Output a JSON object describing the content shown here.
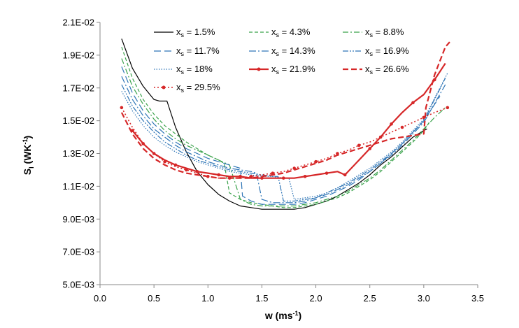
{
  "chart_data": {
    "type": "line",
    "title": "",
    "xlabel": "w (ms",
    "xlabel_sup": "-1",
    "xlabel_tail": ")",
    "ylabel": "S",
    "ylabel_sub": "I",
    "ylabel_unit": " (WK",
    "ylabel_unit_sup": "-1",
    "ylabel_tail": ")",
    "xlim": [
      0,
      3.5
    ],
    "ylim": [
      0.005,
      0.021
    ],
    "x_ticks": [
      0,
      0.5,
      1.0,
      1.5,
      2.0,
      2.5,
      3.0,
      3.5
    ],
    "x_tick_labels": [
      "0.0",
      "0.5",
      "1.0",
      "1.5",
      "2.0",
      "2.5",
      "3.0",
      "3.5"
    ],
    "y_ticks": [
      0.005,
      0.007,
      0.009,
      0.011,
      0.013,
      0.015,
      0.017,
      0.019,
      0.021
    ],
    "y_tick_labels": [
      "5.0E-03",
      "7.0E-03",
      "9.0E-03",
      "1.1E-02",
      "1.3E-02",
      "1.5E-02",
      "1.7E-02",
      "1.9E-02",
      "2.1E-02"
    ],
    "grid": false,
    "legend_position": "top",
    "legend_prefix": "x",
    "legend_sub": "s",
    "series": [
      {
        "name": "= 1.5%",
        "color": "#000000",
        "dash": "",
        "width": 1.2,
        "marker": false,
        "x": [
          0.2,
          0.3,
          0.4,
          0.5,
          0.55,
          0.62,
          0.7,
          0.8,
          0.9,
          1.0,
          1.1,
          1.2,
          1.3,
          1.4,
          1.5,
          1.6,
          1.7,
          1.8,
          1.9,
          2.0,
          2.1,
          2.2,
          2.3,
          2.4,
          2.5,
          2.6,
          2.7,
          2.8,
          2.9,
          3.0,
          3.03
        ],
        "y": [
          0.02,
          0.0182,
          0.0171,
          0.0163,
          0.0162,
          0.0162,
          0.0146,
          0.0131,
          0.0119,
          0.0111,
          0.0105,
          0.0101,
          0.0098,
          0.0097,
          0.0096,
          0.0096,
          0.0096,
          0.0096,
          0.0097,
          0.0099,
          0.0101,
          0.0104,
          0.0108,
          0.0112,
          0.0117,
          0.0123,
          0.0128,
          0.0134,
          0.014,
          0.0144,
          0.0145
        ]
      },
      {
        "name": "= 4.3%",
        "color": "#3aa24b",
        "dash": "5,3",
        "width": 1.2,
        "marker": false,
        "x": [
          0.2,
          0.3,
          0.4,
          0.5,
          0.6,
          0.7,
          0.8,
          0.9,
          1.0,
          1.1,
          1.15,
          1.2,
          1.3,
          1.4,
          1.5,
          1.6,
          1.7,
          1.8,
          1.9,
          2.0,
          2.1,
          2.2,
          2.3,
          2.4,
          2.5,
          2.6,
          2.7,
          2.8,
          2.9,
          3.0,
          3.05
        ],
        "y": [
          0.0195,
          0.0176,
          0.0163,
          0.0154,
          0.0147,
          0.0142,
          0.0137,
          0.0133,
          0.0129,
          0.0126,
          0.0124,
          0.0106,
          0.0102,
          0.01,
          0.0099,
          0.0098,
          0.0097,
          0.0097,
          0.0098,
          0.0099,
          0.0101,
          0.0103,
          0.0106,
          0.011,
          0.0114,
          0.0119,
          0.0125,
          0.0131,
          0.0137,
          0.0144,
          0.0149
        ]
      },
      {
        "name": "= 8.8%",
        "color": "#3aa24b",
        "dash": "8,3,2,3",
        "width": 1.2,
        "marker": false,
        "x": [
          0.2,
          0.3,
          0.4,
          0.5,
          0.6,
          0.7,
          0.8,
          0.9,
          1.0,
          1.1,
          1.2,
          1.3,
          1.4,
          1.5,
          1.6,
          1.7,
          1.8,
          1.9,
          2.0,
          2.1,
          2.2,
          2.3,
          2.4,
          2.5,
          2.6,
          2.7,
          2.8,
          2.9,
          3.0,
          3.1,
          3.2
        ],
        "y": [
          0.0188,
          0.0171,
          0.016,
          0.0151,
          0.0144,
          0.0139,
          0.0135,
          0.0132,
          0.0129,
          0.0126,
          0.0123,
          0.0102,
          0.0099,
          0.0098,
          0.0098,
          0.0098,
          0.0098,
          0.0099,
          0.01,
          0.0102,
          0.0104,
          0.0107,
          0.0111,
          0.0115,
          0.012,
          0.0126,
          0.0132,
          0.0138,
          0.0145,
          0.0152,
          0.0158
        ]
      },
      {
        "name": "= 11.7%",
        "color": "#2e75b6",
        "dash": "10,5",
        "width": 1.2,
        "marker": false,
        "x": [
          0.2,
          0.3,
          0.4,
          0.5,
          0.6,
          0.7,
          0.8,
          0.9,
          1.0,
          1.1,
          1.2,
          1.3,
          1.32,
          1.4,
          1.5,
          1.6,
          1.7,
          1.8,
          1.9,
          2.0,
          2.1,
          2.2,
          2.3,
          2.4,
          2.5,
          2.6,
          2.7,
          2.8,
          2.9,
          3.0,
          3.15
        ],
        "y": [
          0.0183,
          0.0167,
          0.0156,
          0.0148,
          0.0142,
          0.0137,
          0.0133,
          0.013,
          0.0127,
          0.0125,
          0.0123,
          0.0121,
          0.0104,
          0.0101,
          0.0099,
          0.0099,
          0.0099,
          0.0099,
          0.01,
          0.0102,
          0.0104,
          0.0107,
          0.011,
          0.0114,
          0.0119,
          0.0124,
          0.013,
          0.0136,
          0.0143,
          0.015,
          0.0165
        ]
      },
      {
        "name": "= 14.3%",
        "color": "#2e75b6",
        "dash": "10,3,2,3",
        "width": 1.2,
        "marker": false,
        "x": [
          0.2,
          0.3,
          0.4,
          0.5,
          0.6,
          0.7,
          0.8,
          0.9,
          1.0,
          1.1,
          1.2,
          1.3,
          1.4,
          1.45,
          1.5,
          1.6,
          1.7,
          1.8,
          1.9,
          2.0,
          2.1,
          2.2,
          2.3,
          2.4,
          2.5,
          2.6,
          2.7,
          2.8,
          2.9,
          3.0,
          3.2
        ],
        "y": [
          0.0177,
          0.0163,
          0.0153,
          0.0145,
          0.014,
          0.0135,
          0.0131,
          0.0128,
          0.0125,
          0.0123,
          0.0121,
          0.012,
          0.0119,
          0.0118,
          0.0102,
          0.01,
          0.01,
          0.01,
          0.0101,
          0.0103,
          0.0105,
          0.0108,
          0.0111,
          0.0115,
          0.0119,
          0.0124,
          0.0129,
          0.0135,
          0.0142,
          0.0149,
          0.0172
        ]
      },
      {
        "name": "= 16.9%",
        "color": "#2e75b6",
        "dash": "8,2,2,2,2,2",
        "width": 1.2,
        "marker": false,
        "x": [
          0.2,
          0.3,
          0.4,
          0.5,
          0.6,
          0.7,
          0.8,
          0.9,
          1.0,
          1.1,
          1.2,
          1.3,
          1.4,
          1.5,
          1.6,
          1.65,
          1.7,
          1.8,
          1.9,
          2.0,
          2.1,
          2.2,
          2.3,
          2.4,
          2.5,
          2.6,
          2.7,
          2.8,
          2.9,
          3.0,
          3.2
        ],
        "y": [
          0.0172,
          0.0159,
          0.015,
          0.0143,
          0.0137,
          0.0133,
          0.0129,
          0.0126,
          0.0124,
          0.0122,
          0.012,
          0.0119,
          0.0118,
          0.0117,
          0.0116,
          0.0116,
          0.0101,
          0.0101,
          0.0102,
          0.0103,
          0.0106,
          0.0109,
          0.0112,
          0.0116,
          0.012,
          0.0125,
          0.013,
          0.0136,
          0.0143,
          0.015,
          0.0176
        ]
      },
      {
        "name": "= 18%",
        "color": "#2e75b6",
        "dash": "1.5,2",
        "width": 1.2,
        "marker": false,
        "x": [
          0.2,
          0.3,
          0.4,
          0.5,
          0.6,
          0.7,
          0.8,
          0.9,
          1.0,
          1.1,
          1.2,
          1.3,
          1.4,
          1.5,
          1.6,
          1.7,
          1.75,
          1.8,
          1.9,
          2.0,
          2.1,
          2.2,
          2.3,
          2.4,
          2.5,
          2.6,
          2.7,
          2.8,
          2.9,
          3.0,
          3.22
        ],
        "y": [
          0.0168,
          0.0156,
          0.0147,
          0.014,
          0.0135,
          0.0131,
          0.0128,
          0.0125,
          0.0123,
          0.0121,
          0.0119,
          0.0118,
          0.0117,
          0.0116,
          0.0116,
          0.0115,
          0.0115,
          0.0102,
          0.0103,
          0.0104,
          0.0106,
          0.0109,
          0.0113,
          0.0117,
          0.0121,
          0.0126,
          0.0131,
          0.0137,
          0.0144,
          0.0151,
          0.0179
        ]
      },
      {
        "name": "= 21.9%",
        "color": "#d62728",
        "dash": "",
        "width": 2.2,
        "marker": "dot",
        "x": [
          0.3,
          0.4,
          0.5,
          0.6,
          0.7,
          0.8,
          0.9,
          1.0,
          1.1,
          1.2,
          1.3,
          1.4,
          1.5,
          1.6,
          1.7,
          1.8,
          1.9,
          2.0,
          2.1,
          2.2,
          2.27,
          2.4,
          2.5,
          2.6,
          2.7,
          2.8,
          2.9,
          3.0,
          3.1,
          3.2
        ],
        "y": [
          0.0144,
          0.0136,
          0.013,
          0.0126,
          0.0123,
          0.0121,
          0.0119,
          0.0118,
          0.0117,
          0.0116,
          0.0116,
          0.0115,
          0.0115,
          0.0115,
          0.0115,
          0.0115,
          0.0116,
          0.0117,
          0.0118,
          0.0119,
          0.0117,
          0.0126,
          0.0133,
          0.014,
          0.0148,
          0.0155,
          0.0161,
          0.0166,
          0.0175,
          0.0185
        ]
      },
      {
        "name": "= 26.6%",
        "color": "#d62728",
        "dash": "8,4",
        "width": 2.2,
        "marker": false,
        "x": [
          0.2,
          0.3,
          0.4,
          0.5,
          0.6,
          0.7,
          0.8,
          0.9,
          1.0,
          1.1,
          1.2,
          1.3,
          1.4,
          1.5,
          1.6,
          1.7,
          1.8,
          1.9,
          2.0,
          2.1,
          2.2,
          2.3,
          2.4,
          2.5,
          2.6,
          2.7,
          2.8,
          2.9,
          3.0,
          3.02,
          3.1,
          3.2,
          3.24
        ],
        "y": [
          0.0155,
          0.0142,
          0.0133,
          0.0127,
          0.0123,
          0.012,
          0.0118,
          0.0117,
          0.0116,
          0.0115,
          0.0115,
          0.0115,
          0.0115,
          0.0116,
          0.0117,
          0.0118,
          0.012,
          0.0122,
          0.0124,
          0.0126,
          0.0129,
          0.0131,
          0.0133,
          0.0135,
          0.0137,
          0.0139,
          0.014,
          0.0141,
          0.0142,
          0.0158,
          0.0178,
          0.0195,
          0.0198
        ]
      },
      {
        "name": "= 29.5%",
        "color": "#d62728",
        "dash": "2,3",
        "width": 1.6,
        "marker": "dot",
        "x": [
          0.2,
          0.3,
          0.4,
          0.5,
          0.6,
          0.7,
          0.8,
          0.9,
          1.0,
          1.1,
          1.2,
          1.3,
          1.4,
          1.5,
          1.6,
          1.7,
          1.8,
          1.9,
          2.0,
          2.1,
          2.2,
          2.3,
          2.4,
          2.5,
          2.6,
          2.7,
          2.8,
          2.9,
          3.0,
          3.1,
          3.22
        ],
        "y": [
          0.0158,
          0.0146,
          0.0136,
          0.013,
          0.0125,
          0.0122,
          0.012,
          0.0118,
          0.0116,
          0.0115,
          0.0115,
          0.0115,
          0.0116,
          0.0117,
          0.0118,
          0.0119,
          0.0121,
          0.0123,
          0.0125,
          0.0127,
          0.013,
          0.0132,
          0.0135,
          0.0137,
          0.014,
          0.0143,
          0.0146,
          0.0149,
          0.0152,
          0.0155,
          0.0158
        ]
      }
    ]
  }
}
